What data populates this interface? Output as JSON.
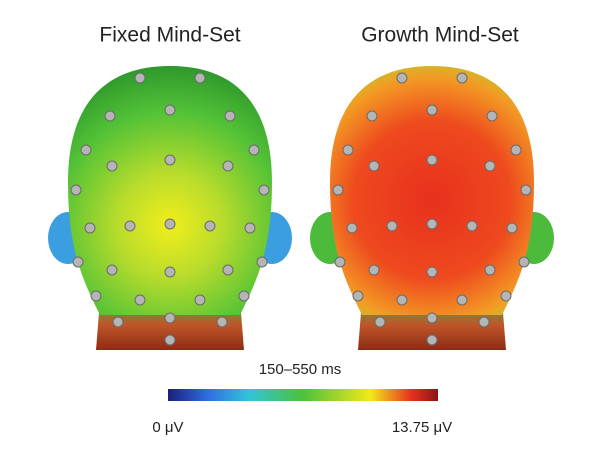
{
  "panels": [
    {
      "title": "Fixed Mind-Set"
    },
    {
      "title": "Growth Mind-Set"
    }
  ],
  "colorbar": {
    "label": "150–550 ms",
    "min_label": "0 μV",
    "max_label": "13.75 μV"
  }
}
